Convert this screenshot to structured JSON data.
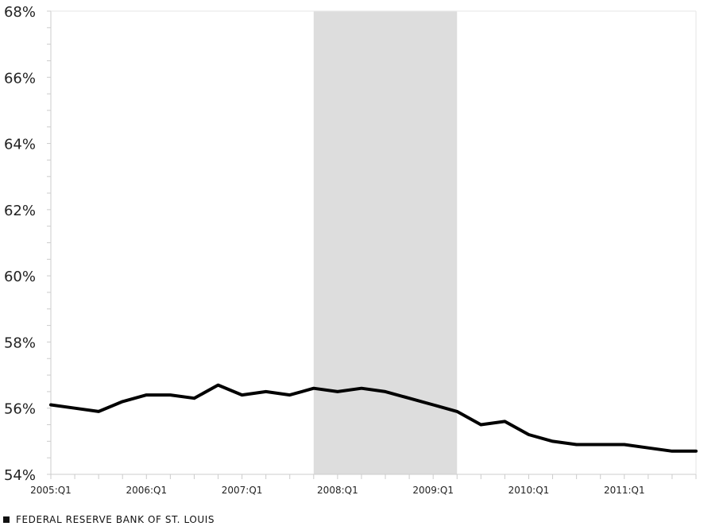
{
  "chart_data": {
    "type": "line",
    "x": [
      "2005:Q1",
      "2005:Q2",
      "2005:Q3",
      "2005:Q4",
      "2006:Q1",
      "2006:Q2",
      "2006:Q3",
      "2006:Q4",
      "2007:Q1",
      "2007:Q2",
      "2007:Q3",
      "2007:Q4",
      "2008:Q1",
      "2008:Q2",
      "2008:Q3",
      "2008:Q4",
      "2009:Q1",
      "2009:Q2",
      "2009:Q3",
      "2009:Q4",
      "2010:Q1",
      "2010:Q2",
      "2010:Q3",
      "2010:Q4",
      "2011:Q1",
      "2011:Q2",
      "2011:Q3",
      "2011:Q4"
    ],
    "series": [
      {
        "values": [
          56.1,
          56.0,
          55.9,
          56.2,
          56.4,
          56.4,
          56.3,
          56.7,
          56.4,
          56.5,
          56.4,
          56.6,
          56.5,
          56.6,
          56.5,
          56.3,
          56.1,
          55.9,
          55.5,
          55.6,
          55.2,
          55.0,
          54.9,
          54.9,
          54.9,
          54.8,
          54.7,
          54.7
        ],
        "color": "#000000"
      }
    ],
    "x_tick_labels": [
      "2005:Q1",
      "2006:Q1",
      "2007:Q1",
      "2008:Q1",
      "2009:Q1",
      "2010:Q1",
      "2011:Q1"
    ],
    "y_tick_labels": [
      "54%",
      "56%",
      "58%",
      "60%",
      "62%",
      "64%",
      "66%",
      "68%"
    ],
    "ylim": [
      54,
      68
    ],
    "recession_shading": {
      "start": "2007:Q4",
      "end": "2009:Q2",
      "color": "#dddddd"
    },
    "grid": false,
    "title": "",
    "xlabel": "",
    "ylabel": ""
  },
  "footer": {
    "source": "FEDERAL RESERVE BANK OF ST. LOUIS"
  }
}
